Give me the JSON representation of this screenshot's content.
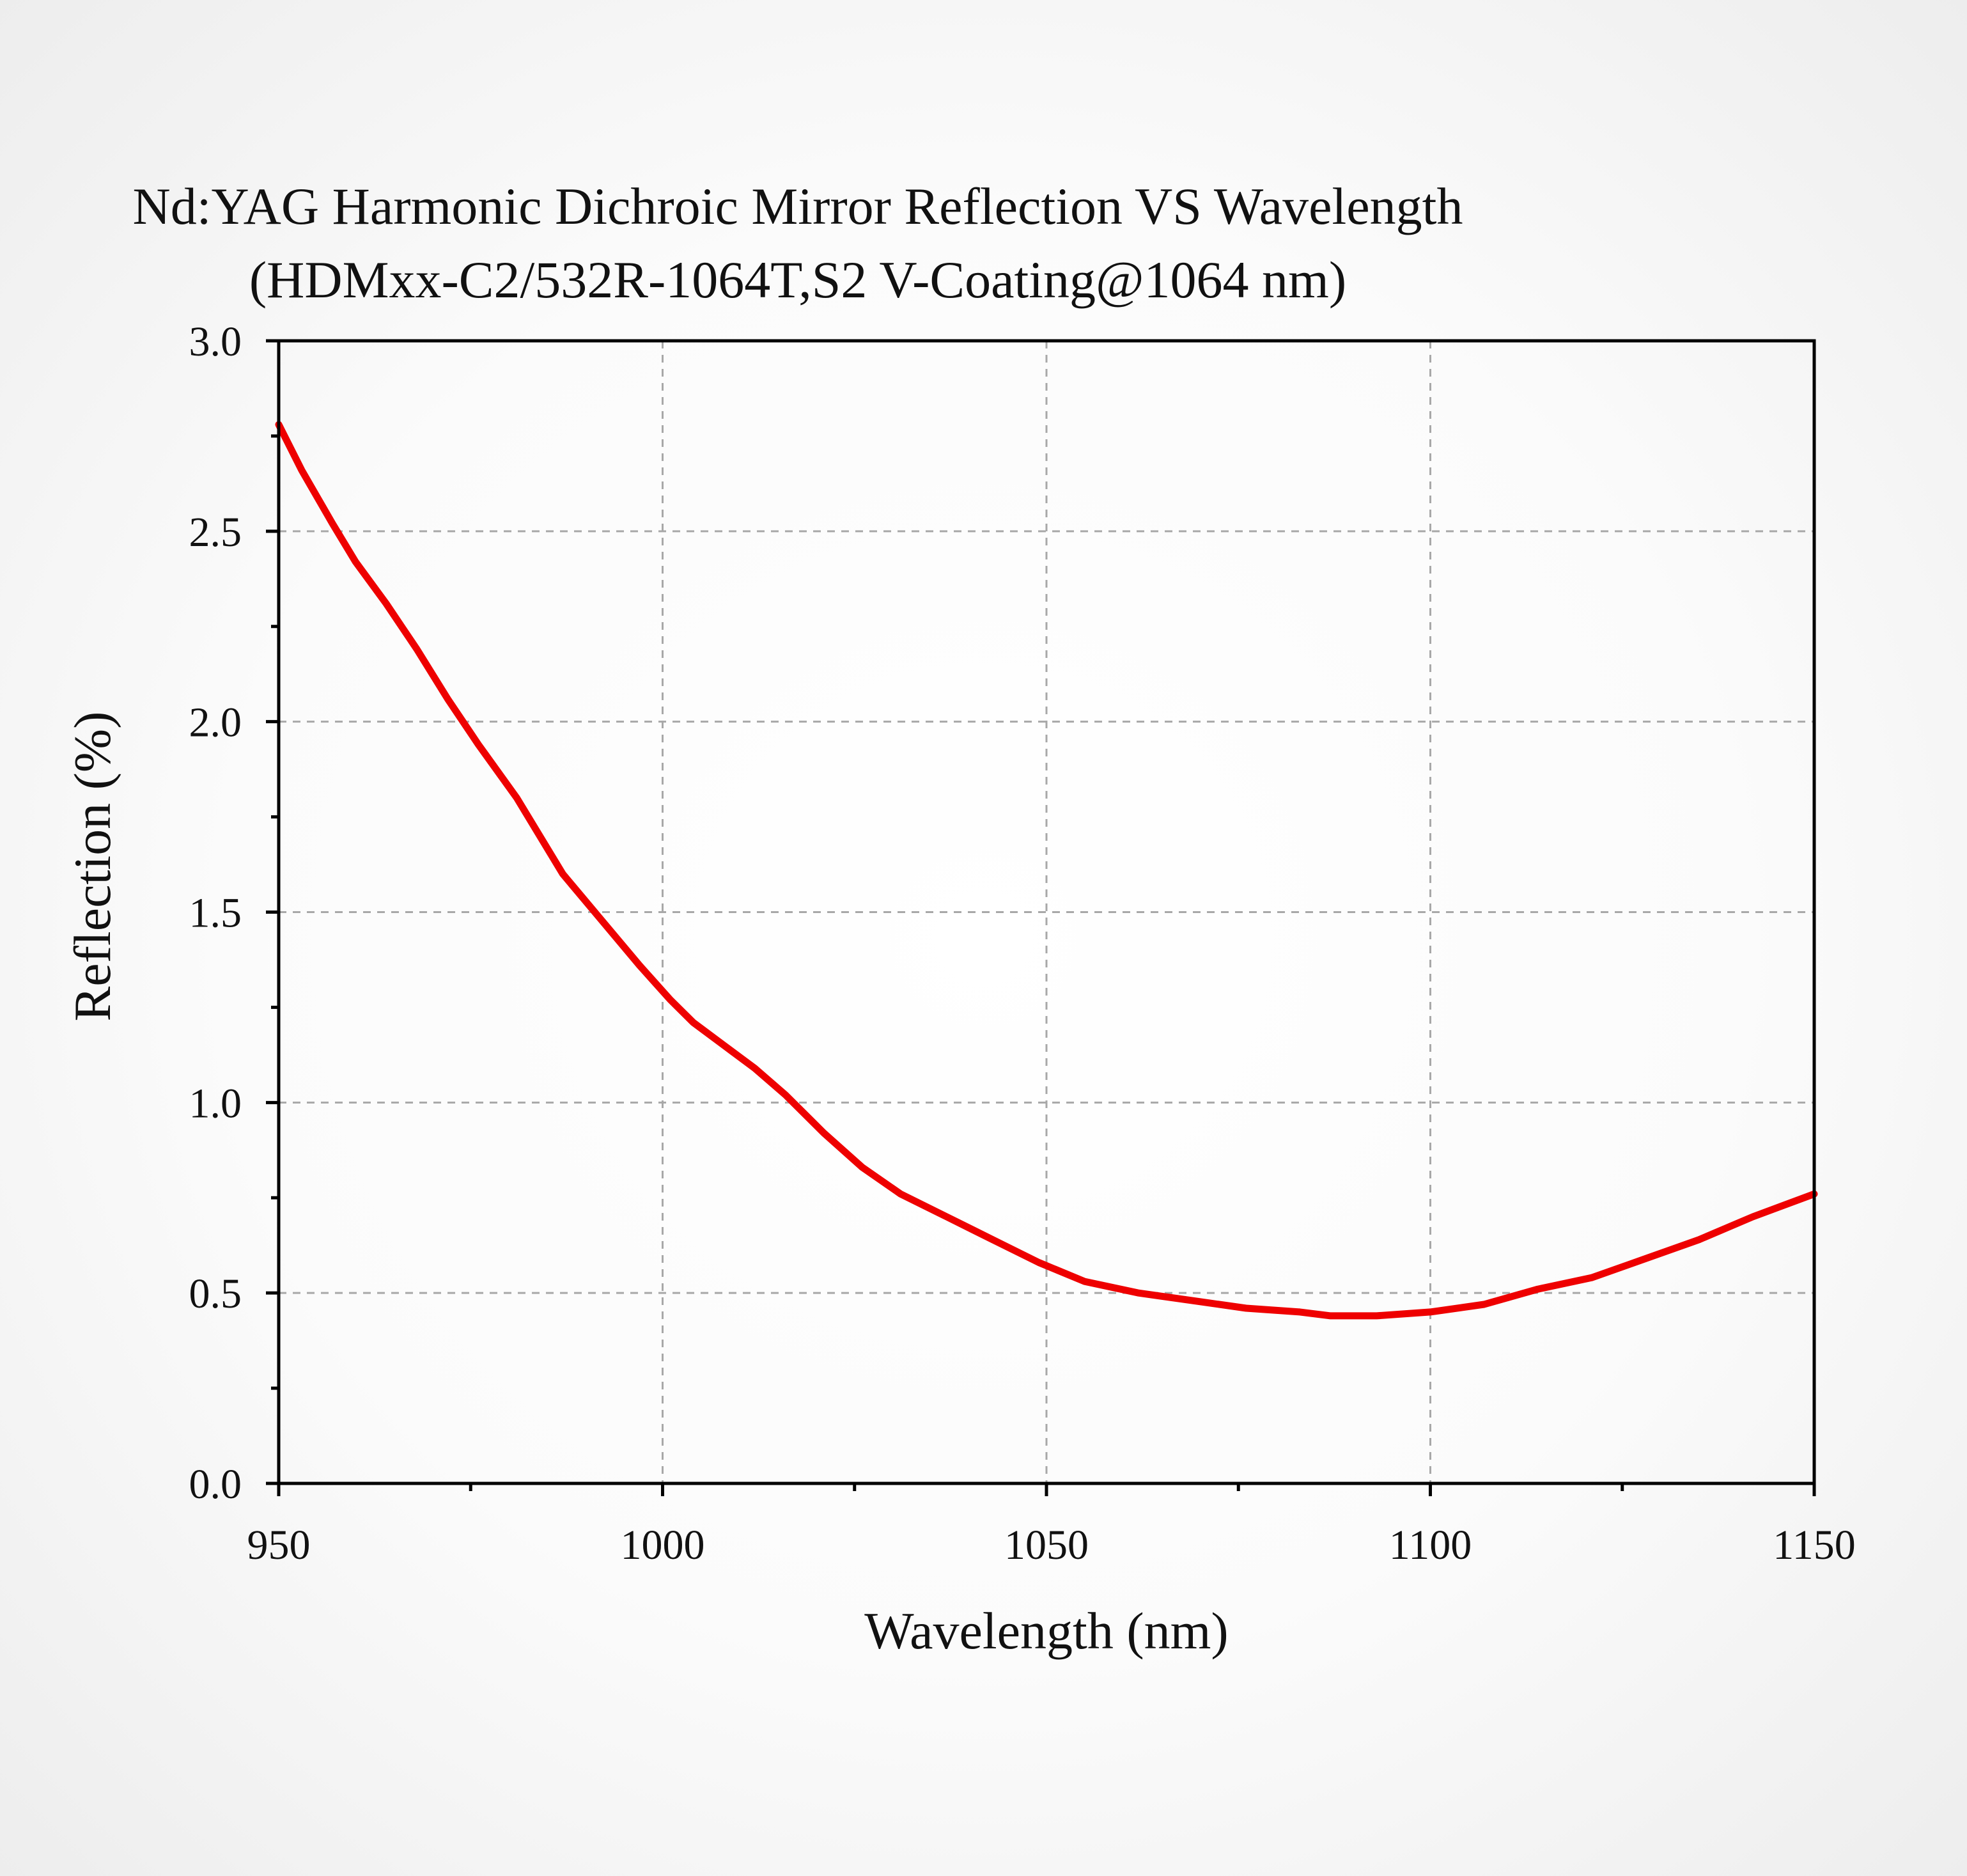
{
  "colors": {
    "series": "#ee0000",
    "grid": "#a8a8a8",
    "axis": "#000000",
    "text": "#111111"
  },
  "chart_data": {
    "type": "line",
    "title": "Nd:YAG Harmonic Dichroic Mirror Reflection VS Wavelength",
    "subtitle": "(HDMxx-C2/532R-1064T,S2 V-Coating@1064 nm)",
    "xlabel": "Wavelength (nm)",
    "ylabel": "Reflection (%)",
    "xlim": [
      950,
      1150
    ],
    "ylim": [
      0.0,
      3.0
    ],
    "x_ticks": [
      "950",
      "1000",
      "1050",
      "1100",
      "1150"
    ],
    "y_ticks": [
      "0.0",
      "0.5",
      "1.0",
      "1.5",
      "2.0",
      "2.5",
      "3.0"
    ],
    "x_tick_values": [
      950,
      1000,
      1050,
      1100,
      1150
    ],
    "y_tick_values": [
      0.0,
      0.5,
      1.0,
      1.5,
      2.0,
      2.5,
      3.0
    ],
    "x_minor_ticks": [
      975,
      1025,
      1075,
      1125
    ],
    "y_minor_ticks": [
      0.25,
      0.75,
      1.25,
      1.75,
      2.25,
      2.75
    ],
    "grid": true,
    "grid_style": "dashed",
    "legend": "none",
    "series": [
      {
        "color": "#ee0000",
        "x": [
          950,
          953,
          957,
          960,
          964,
          968,
          972,
          976,
          981,
          987,
          992,
          997,
          1001,
          1004,
          1008,
          1012,
          1016,
          1021,
          1026,
          1031,
          1037,
          1043,
          1049,
          1055,
          1062,
          1069,
          1076,
          1083,
          1087,
          1093,
          1100,
          1107,
          1114,
          1121,
          1128,
          1135,
          1142,
          1150
        ],
        "y": [
          2.78,
          2.66,
          2.52,
          2.42,
          2.31,
          2.19,
          2.06,
          1.94,
          1.8,
          1.6,
          1.48,
          1.36,
          1.27,
          1.21,
          1.15,
          1.09,
          1.02,
          0.92,
          0.83,
          0.76,
          0.7,
          0.64,
          0.58,
          0.53,
          0.5,
          0.48,
          0.46,
          0.45,
          0.44,
          0.44,
          0.45,
          0.47,
          0.51,
          0.54,
          0.59,
          0.64,
          0.7,
          0.76
        ]
      }
    ]
  }
}
